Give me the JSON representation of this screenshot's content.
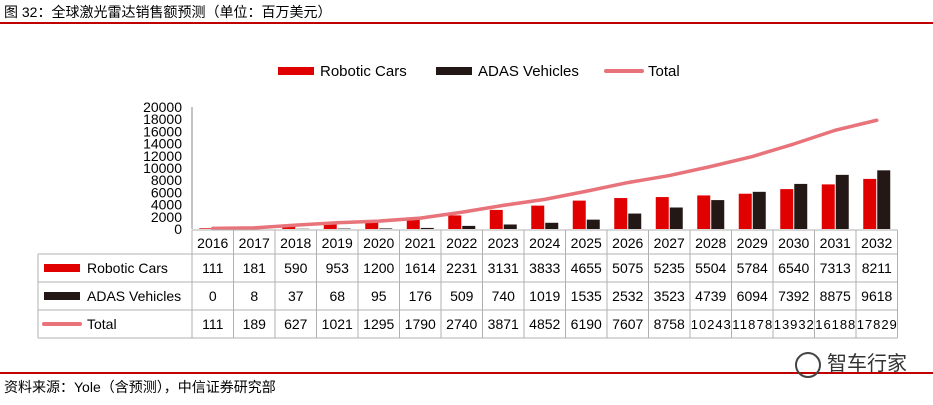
{
  "title": "图 32：全球激光雷达销售额预测（单位：百万美元）",
  "source": "资料来源：Yole（含预测），中信证券研究部",
  "watermark": "智车行家",
  "colors": {
    "robotic": "#e00000",
    "adas": "#231815",
    "total": "#e8737a",
    "rule": "#c00000"
  },
  "chart_data": {
    "type": "bar",
    "title": "",
    "xlabel": "",
    "ylabel": "",
    "ylim": [
      0,
      20000
    ],
    "yticks": [
      0,
      2000,
      4000,
      6000,
      8000,
      10000,
      12000,
      14000,
      16000,
      18000,
      20000
    ],
    "categories": [
      "2016",
      "2017",
      "2018",
      "2019",
      "2020",
      "2021",
      "2022",
      "2023",
      "2024",
      "2025",
      "2026",
      "2027",
      "2028",
      "2029",
      "2030",
      "2031",
      "2032"
    ],
    "series": [
      {
        "name": "Robotic Cars",
        "kind": "bar",
        "values": [
          111,
          181,
          590,
          953,
          1200,
          1614,
          2231,
          3131,
          3833,
          4655,
          5075,
          5235,
          5504,
          5784,
          6540,
          7313,
          8211
        ]
      },
      {
        "name": "ADAS Vehicles",
        "kind": "bar",
        "values": [
          0,
          8,
          37,
          68,
          95,
          176,
          509,
          740,
          1019,
          1535,
          2532,
          3523,
          4739,
          6094,
          7392,
          8875,
          9618
        ]
      },
      {
        "name": "Total",
        "kind": "line",
        "values": [
          111,
          189,
          627,
          1021,
          1295,
          1790,
          2740,
          3871,
          4852,
          6190,
          7607,
          8758,
          10243,
          11878,
          13932,
          16188,
          17829
        ]
      }
    ],
    "legend_position": "top-center",
    "data_table": true
  }
}
